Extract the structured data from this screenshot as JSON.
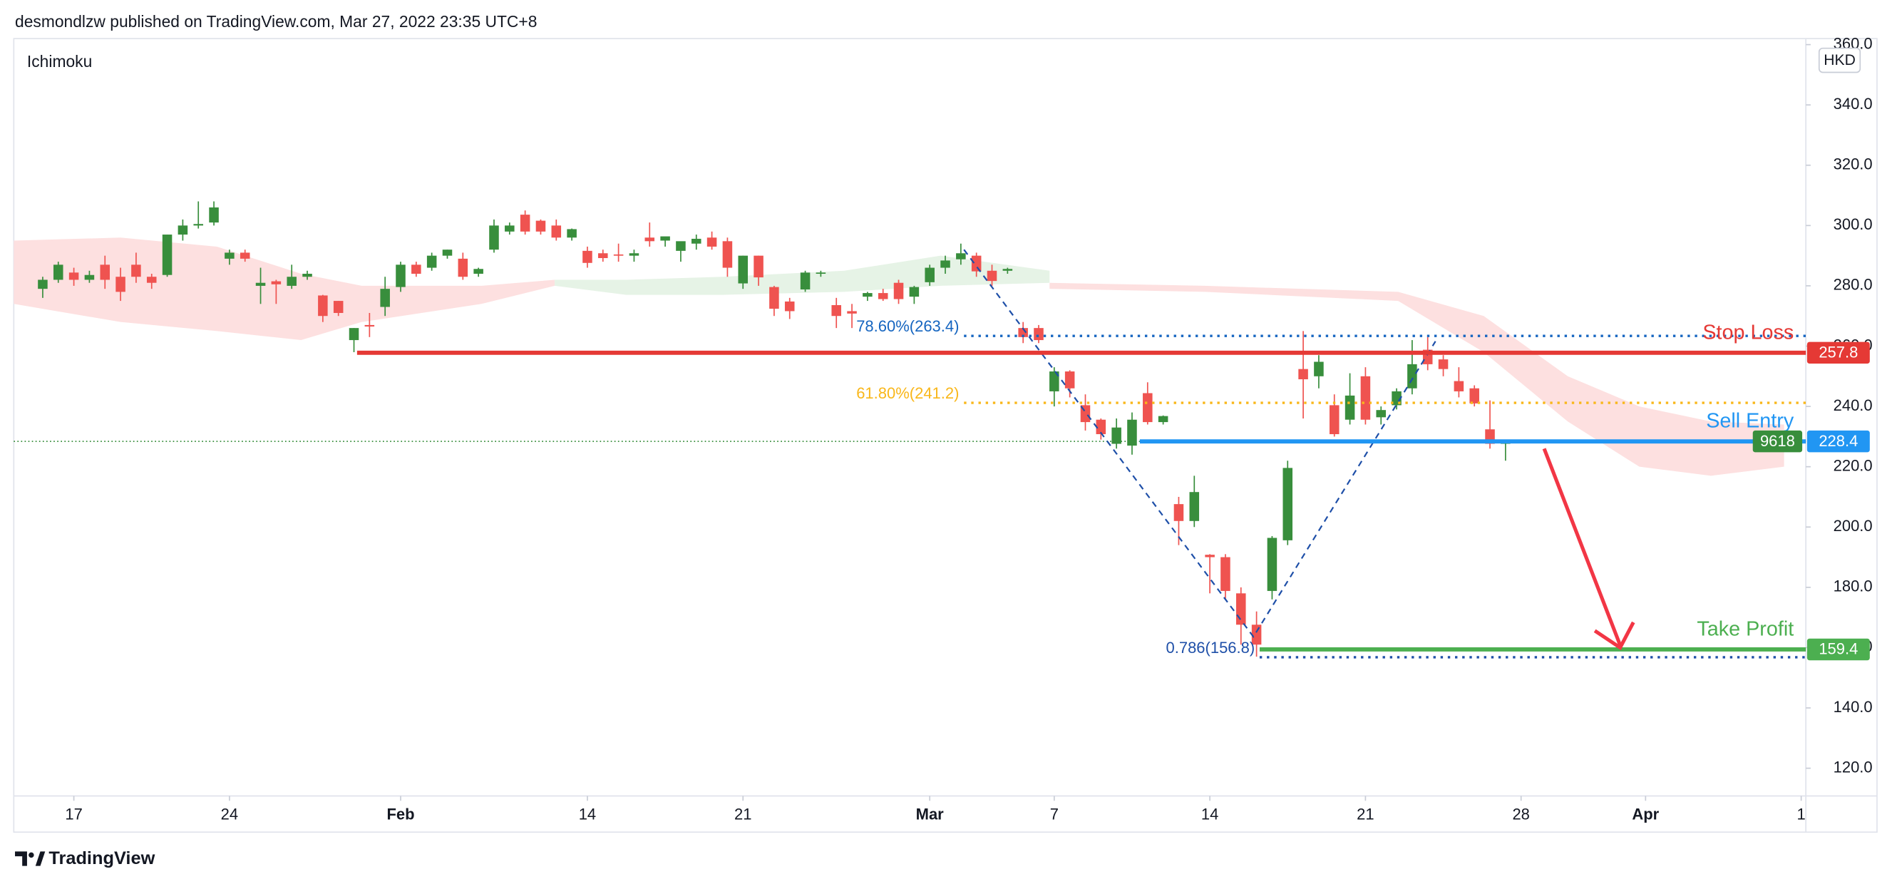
{
  "header": {
    "text": "desmondlzw published on TradingView.com, Mar 27, 2022 23:35 UTC+8"
  },
  "footer": {
    "brand": "TradingView"
  },
  "chart_data": {
    "type": "candlestick",
    "indicator": "Ichimoku",
    "currency": "HKD",
    "up_color": "#388e3c",
    "down_color": "#ef5350",
    "open": [
      279,
      282,
      284.4,
      282,
      287,
      283,
      287,
      283,
      283.6,
      297,
      300,
      301,
      289,
      291,
      280,
      281.5,
      280,
      283,
      276.8,
      275,
      262,
      267,
      273,
      279.6,
      287,
      286,
      290,
      289,
      284,
      292,
      298,
      303.6,
      301.6,
      300,
      296,
      291.6,
      290.8,
      290.4,
      290,
      296,
      295,
      291.6,
      294,
      296,
      294.8,
      280.8,
      290,
      279.6,
      274.8,
      278.8,
      284,
      273.6,
      271.6,
      276.4,
      277.6,
      281,
      276.4,
      281.2,
      286,
      288.8,
      290,
      285,
      285,
      266,
      266,
      245,
      251.6,
      240.4,
      235.6,
      227.6,
      227,
      244.4,
      234.8,
      207.6,
      202,
      190.8,
      190,
      178,
      167.6,
      178.8,
      195.6,
      252.4,
      250,
      240.4,
      235.6,
      250,
      236.4,
      240.4,
      246,
      258.8,
      255.6,
      248.4,
      246,
      232.4,
      227.6
    ],
    "high": [
      283,
      288,
      286,
      285,
      290,
      286,
      291,
      284,
      297,
      302,
      308,
      308,
      292,
      292,
      286,
      282,
      287,
      285,
      277,
      275,
      266,
      271,
      283,
      288,
      288,
      291,
      292,
      291,
      286,
      302,
      301,
      305,
      302,
      302,
      299,
      293,
      292,
      294,
      292,
      301,
      296,
      294,
      297,
      298,
      296,
      290,
      290,
      280,
      276,
      285,
      285,
      276,
      274,
      278,
      279,
      282,
      280,
      287,
      290,
      294,
      291,
      287,
      286,
      268,
      267,
      253,
      252,
      244,
      236,
      236,
      238,
      248,
      237,
      210,
      217,
      191,
      191,
      180,
      172,
      197,
      222,
      265,
      257,
      244,
      251,
      253,
      240,
      246,
      262,
      263,
      257,
      253,
      247,
      242,
      229
    ],
    "low": [
      276,
      281,
      280,
      281,
      279,
      275,
      281,
      279,
      283,
      295,
      299,
      300,
      287,
      288,
      274,
      274,
      279,
      282,
      268,
      270,
      258,
      263,
      270,
      278,
      283,
      285,
      289,
      282,
      283,
      291,
      297,
      297,
      297,
      295,
      295,
      286,
      288,
      288,
      288,
      293,
      293,
      288,
      292,
      292,
      283,
      279,
      280,
      270,
      269,
      278,
      283,
      266,
      266,
      275,
      275,
      274,
      274,
      280,
      284,
      287,
      283,
      280,
      284,
      261,
      261,
      240,
      243,
      232,
      229,
      226,
      224,
      234,
      234,
      194,
      200,
      178,
      176,
      161,
      157,
      176,
      194,
      236,
      246,
      230,
      234,
      234,
      234,
      239,
      244,
      252,
      250,
      243,
      240,
      226,
      222
    ],
    "close": [
      282,
      287,
      282,
      283.6,
      282,
      278,
      283,
      281,
      297,
      300,
      300.5,
      306,
      291,
      289,
      281,
      280.5,
      283,
      284,
      270,
      271,
      266,
      266.5,
      279,
      287,
      284,
      290,
      292,
      283,
      285.6,
      300,
      300,
      298,
      298,
      296,
      298.8,
      287.6,
      289.2,
      290,
      290.8,
      294.8,
      296.4,
      294.8,
      295.6,
      293,
      286,
      290,
      282.8,
      272.4,
      271.6,
      284.4,
      284.4,
      270,
      270.8,
      277.6,
      275.6,
      275.6,
      279.6,
      286,
      288.4,
      290.8,
      284.8,
      281.6,
      285.6,
      263,
      262,
      251.6,
      246,
      234.8,
      230.8,
      233,
      235.6,
      234.8,
      236.8,
      202,
      211.6,
      190,
      178.8,
      167.6,
      161,
      196.4,
      219.6,
      249,
      254.8,
      230.8,
      243.6,
      235.6,
      238.8,
      245,
      254,
      254,
      252.4,
      245,
      241,
      227.6,
      228.4
    ],
    "xlim": [
      -1.86,
      113.3
    ],
    "xticks": [
      {
        "value": 2,
        "label": "17"
      },
      {
        "value": 12,
        "label": "24"
      },
      {
        "value": 23,
        "label": "Feb"
      },
      {
        "value": 35,
        "label": "14"
      },
      {
        "value": 45,
        "label": "21"
      },
      {
        "value": 57,
        "label": "Mar"
      },
      {
        "value": 65,
        "label": "7"
      },
      {
        "value": 75,
        "label": "14"
      },
      {
        "value": 85,
        "label": "21"
      },
      {
        "value": 95,
        "label": "28"
      },
      {
        "value": 103,
        "label": "Apr"
      },
      {
        "value": 113,
        "label": "1"
      }
    ],
    "ylim": [
      110.8,
      362
    ],
    "yticks": [
      {
        "value": 120,
        "label": "120.0"
      },
      {
        "value": 140,
        "label": "140.0"
      },
      {
        "value": 160,
        "label": "160.0"
      },
      {
        "value": 180,
        "label": "180.0"
      },
      {
        "value": 200,
        "label": "200.0"
      },
      {
        "value": 220,
        "label": "220.0"
      },
      {
        "value": 240,
        "label": "240.0"
      },
      {
        "value": 260,
        "label": "260.0"
      },
      {
        "value": 280,
        "label": "280.0"
      },
      {
        "value": 300,
        "label": "300.0"
      },
      {
        "value": 320,
        "label": "320.0"
      },
      {
        "value": 340,
        "label": "340.0"
      },
      {
        "value": 360,
        "label": "360.0"
      }
    ],
    "cloud": [
      {
        "color": "#fde0e0",
        "x": [
          -1.86,
          5,
          11.2,
          16.6,
          20.5,
          28.2,
          32.9
        ],
        "span_a": [
          295,
          296,
          293,
          284,
          280,
          280,
          282
        ],
        "span_b": [
          274,
          268,
          265,
          262,
          268,
          274,
          280
        ]
      },
      {
        "color": "#e6f3e6",
        "x": [
          32.9,
          37.5,
          43.7,
          51.5,
          57.7,
          64.7
        ],
        "span_a": [
          282,
          282,
          283,
          285,
          290,
          285
        ],
        "span_b": [
          280,
          277,
          277,
          278,
          280,
          281
        ]
      },
      {
        "color": "#fde0e0",
        "x": [
          64.7,
          74.7,
          87.1,
          92.6,
          98,
          102.6,
          107.2,
          111.9
        ],
        "span_a": [
          281,
          280,
          278,
          270,
          250,
          240,
          235,
          234
        ],
        "span_b": [
          279,
          278,
          275,
          258,
          235,
          220,
          217,
          220
        ]
      }
    ],
    "last_price": 228.4,
    "levels": [
      {
        "name": "Stop Loss",
        "value": 257.8,
        "color": "#e53935",
        "start": 20.2
      },
      {
        "name": "Sell Entry",
        "value": 228.4,
        "color": "#2196f3",
        "start": 70.5,
        "tag": "9618",
        "tag_color": "#388e3c"
      },
      {
        "name": "Take Profit",
        "value": 159.4,
        "color": "#4caf50",
        "start": 78.2
      }
    ],
    "fib_levels": [
      {
        "label": "78.60%(263.4)",
        "value": 263.4,
        "color": "#1565c0",
        "start": 59.2
      },
      {
        "label": "61.80%(241.2)",
        "value": 241.2,
        "color": "#f9b71a",
        "start": 59.2
      },
      {
        "label": "0.786(156.8)",
        "value": 156.8,
        "color": "#1e4fa8",
        "start": 78.2
      }
    ],
    "pattern": {
      "color": "#1e4fa8",
      "x": [
        59.2,
        77.8,
        89.5
      ],
      "y": [
        292,
        163.6,
        261.6
      ]
    }
  }
}
